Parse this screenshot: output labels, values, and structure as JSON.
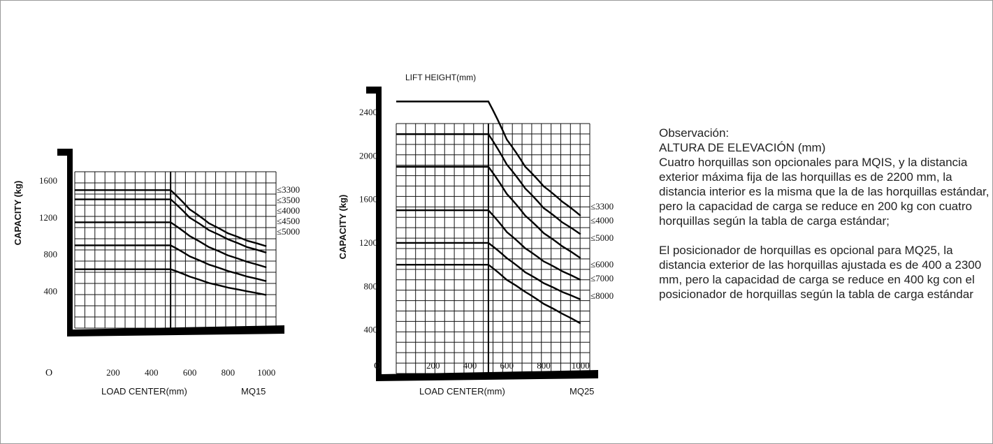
{
  "note": {
    "heading": "Observación:",
    "line2": "ALTURA DE ELEVACIÓN (mm)",
    "para1": "Cuatro horquillas son opcionales para MQIS, y la distancia exterior máxima fija de las horquillas es de 2200 mm, la distancia interior es la misma que la de las horquillas estándar, pero la capacidad de carga se reduce en 200 kg con cuatro horquillas según la tabla de carga estándar;",
    "para2": "El posicionador de horquillas es opcional para MQ25, la distancia exterior de las horquillas ajustada es de 400 a 2300 mm, pero la capacidad de carga se reduce en 400 kg con el posicionador de horquillas según la tabla de carga estándar"
  },
  "chart_data": [
    {
      "type": "line",
      "title": "",
      "xlabel": "LOAD CENTER(mm)",
      "ylabel": "CAPACITY (kg)",
      "model": "MQ15",
      "origin_label": "O",
      "x_ticks": [
        200,
        400,
        600,
        800,
        1000
      ],
      "y_ticks": [
        400,
        800,
        1200,
        1600
      ],
      "xlim": [
        0,
        1050
      ],
      "ylim": [
        0,
        1700
      ],
      "grid": true,
      "x": [
        0,
        500,
        600,
        700,
        800,
        900,
        1000
      ],
      "series": [
        {
          "name": "≤3300",
          "values": [
            1500,
            1500,
            1290,
            1140,
            1030,
            950,
            890
          ]
        },
        {
          "name": "≤3500",
          "values": [
            1400,
            1400,
            1200,
            1065,
            965,
            880,
            820
          ]
        },
        {
          "name": "≤4000",
          "values": [
            1150,
            1150,
            1000,
            880,
            790,
            720,
            660
          ]
        },
        {
          "name": "≤4500",
          "values": [
            900,
            900,
            780,
            690,
            620,
            560,
            510
          ]
        },
        {
          "name": "≤5000",
          "values": [
            640,
            640,
            560,
            490,
            440,
            400,
            360
          ]
        }
      ]
    },
    {
      "type": "line",
      "title": "LIFT HEIGHT(mm)",
      "xlabel": "LOAD CENTER(mm)",
      "ylabel": "CAPACITY (kg)",
      "model": "MQ25",
      "origin_label": "O",
      "x_ticks": [
        200,
        400,
        600,
        800,
        1000
      ],
      "y_ticks": [
        400,
        800,
        1200,
        1600,
        2000,
        2400
      ],
      "xlim": [
        0,
        1050
      ],
      "ylim": [
        0,
        2650
      ],
      "grid": true,
      "x": [
        0,
        500,
        600,
        700,
        800,
        900,
        1000
      ],
      "series": [
        {
          "name": "≤3300",
          "values": [
            2500,
            2500,
            2150,
            1900,
            1720,
            1580,
            1450
          ]
        },
        {
          "name": "≤4000",
          "values": [
            2200,
            2200,
            1920,
            1700,
            1520,
            1390,
            1280
          ]
        },
        {
          "name": "≤5000",
          "values": [
            1900,
            1900,
            1650,
            1450,
            1290,
            1170,
            1060
          ]
        },
        {
          "name": "≤6000",
          "values": [
            1500,
            1500,
            1300,
            1150,
            1030,
            940,
            860
          ]
        },
        {
          "name": "≤7000",
          "values": [
            1200,
            1200,
            1060,
            930,
            830,
            750,
            680
          ]
        },
        {
          "name": "≤8000",
          "values": [
            1000,
            1000,
            860,
            750,
            640,
            550,
            460
          ]
        }
      ]
    }
  ]
}
